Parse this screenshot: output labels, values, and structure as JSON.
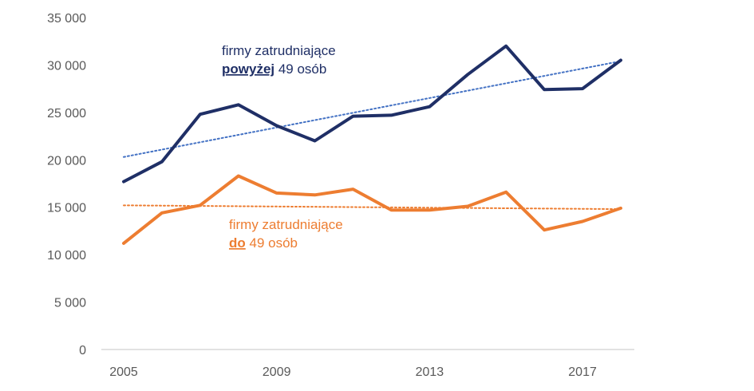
{
  "chart_data": {
    "type": "line",
    "x": [
      2005,
      2006,
      2007,
      2008,
      2009,
      2010,
      2011,
      2012,
      2013,
      2014,
      2015,
      2016,
      2017,
      2018
    ],
    "xticks": [
      "2005",
      "2009",
      "2013",
      "2017"
    ],
    "ylim": [
      0,
      35000
    ],
    "yticks": [
      "0",
      "5 000",
      "10 000",
      "15 000",
      "20 000",
      "25 000",
      "30 000",
      "35 000"
    ],
    "grid": false,
    "series": [
      {
        "name": "firmy zatrudniające powyżej 49 osób",
        "label_line1": "firmy zatrudniające",
        "label_bold": "powyżej",
        "label_rest": " 49 osób",
        "color": "#1f2f66",
        "values": [
          17700,
          19800,
          24800,
          25800,
          23600,
          22000,
          24600,
          24700,
          25600,
          29000,
          32000,
          27400,
          27500,
          30500
        ],
        "trend": [
          20300,
          30400
        ]
      },
      {
        "name": "firmy zatrudniające do 49 osób",
        "label_line1": "firmy zatrudniające",
        "label_bold": "do",
        "label_rest": " 49 osób",
        "color": "#ed7d31",
        "values": [
          11200,
          14400,
          15200,
          18300,
          16500,
          16300,
          16900,
          14700,
          14700,
          15100,
          16600,
          12600,
          13500,
          14900
        ],
        "trend": [
          15200,
          14800
        ]
      }
    ]
  }
}
